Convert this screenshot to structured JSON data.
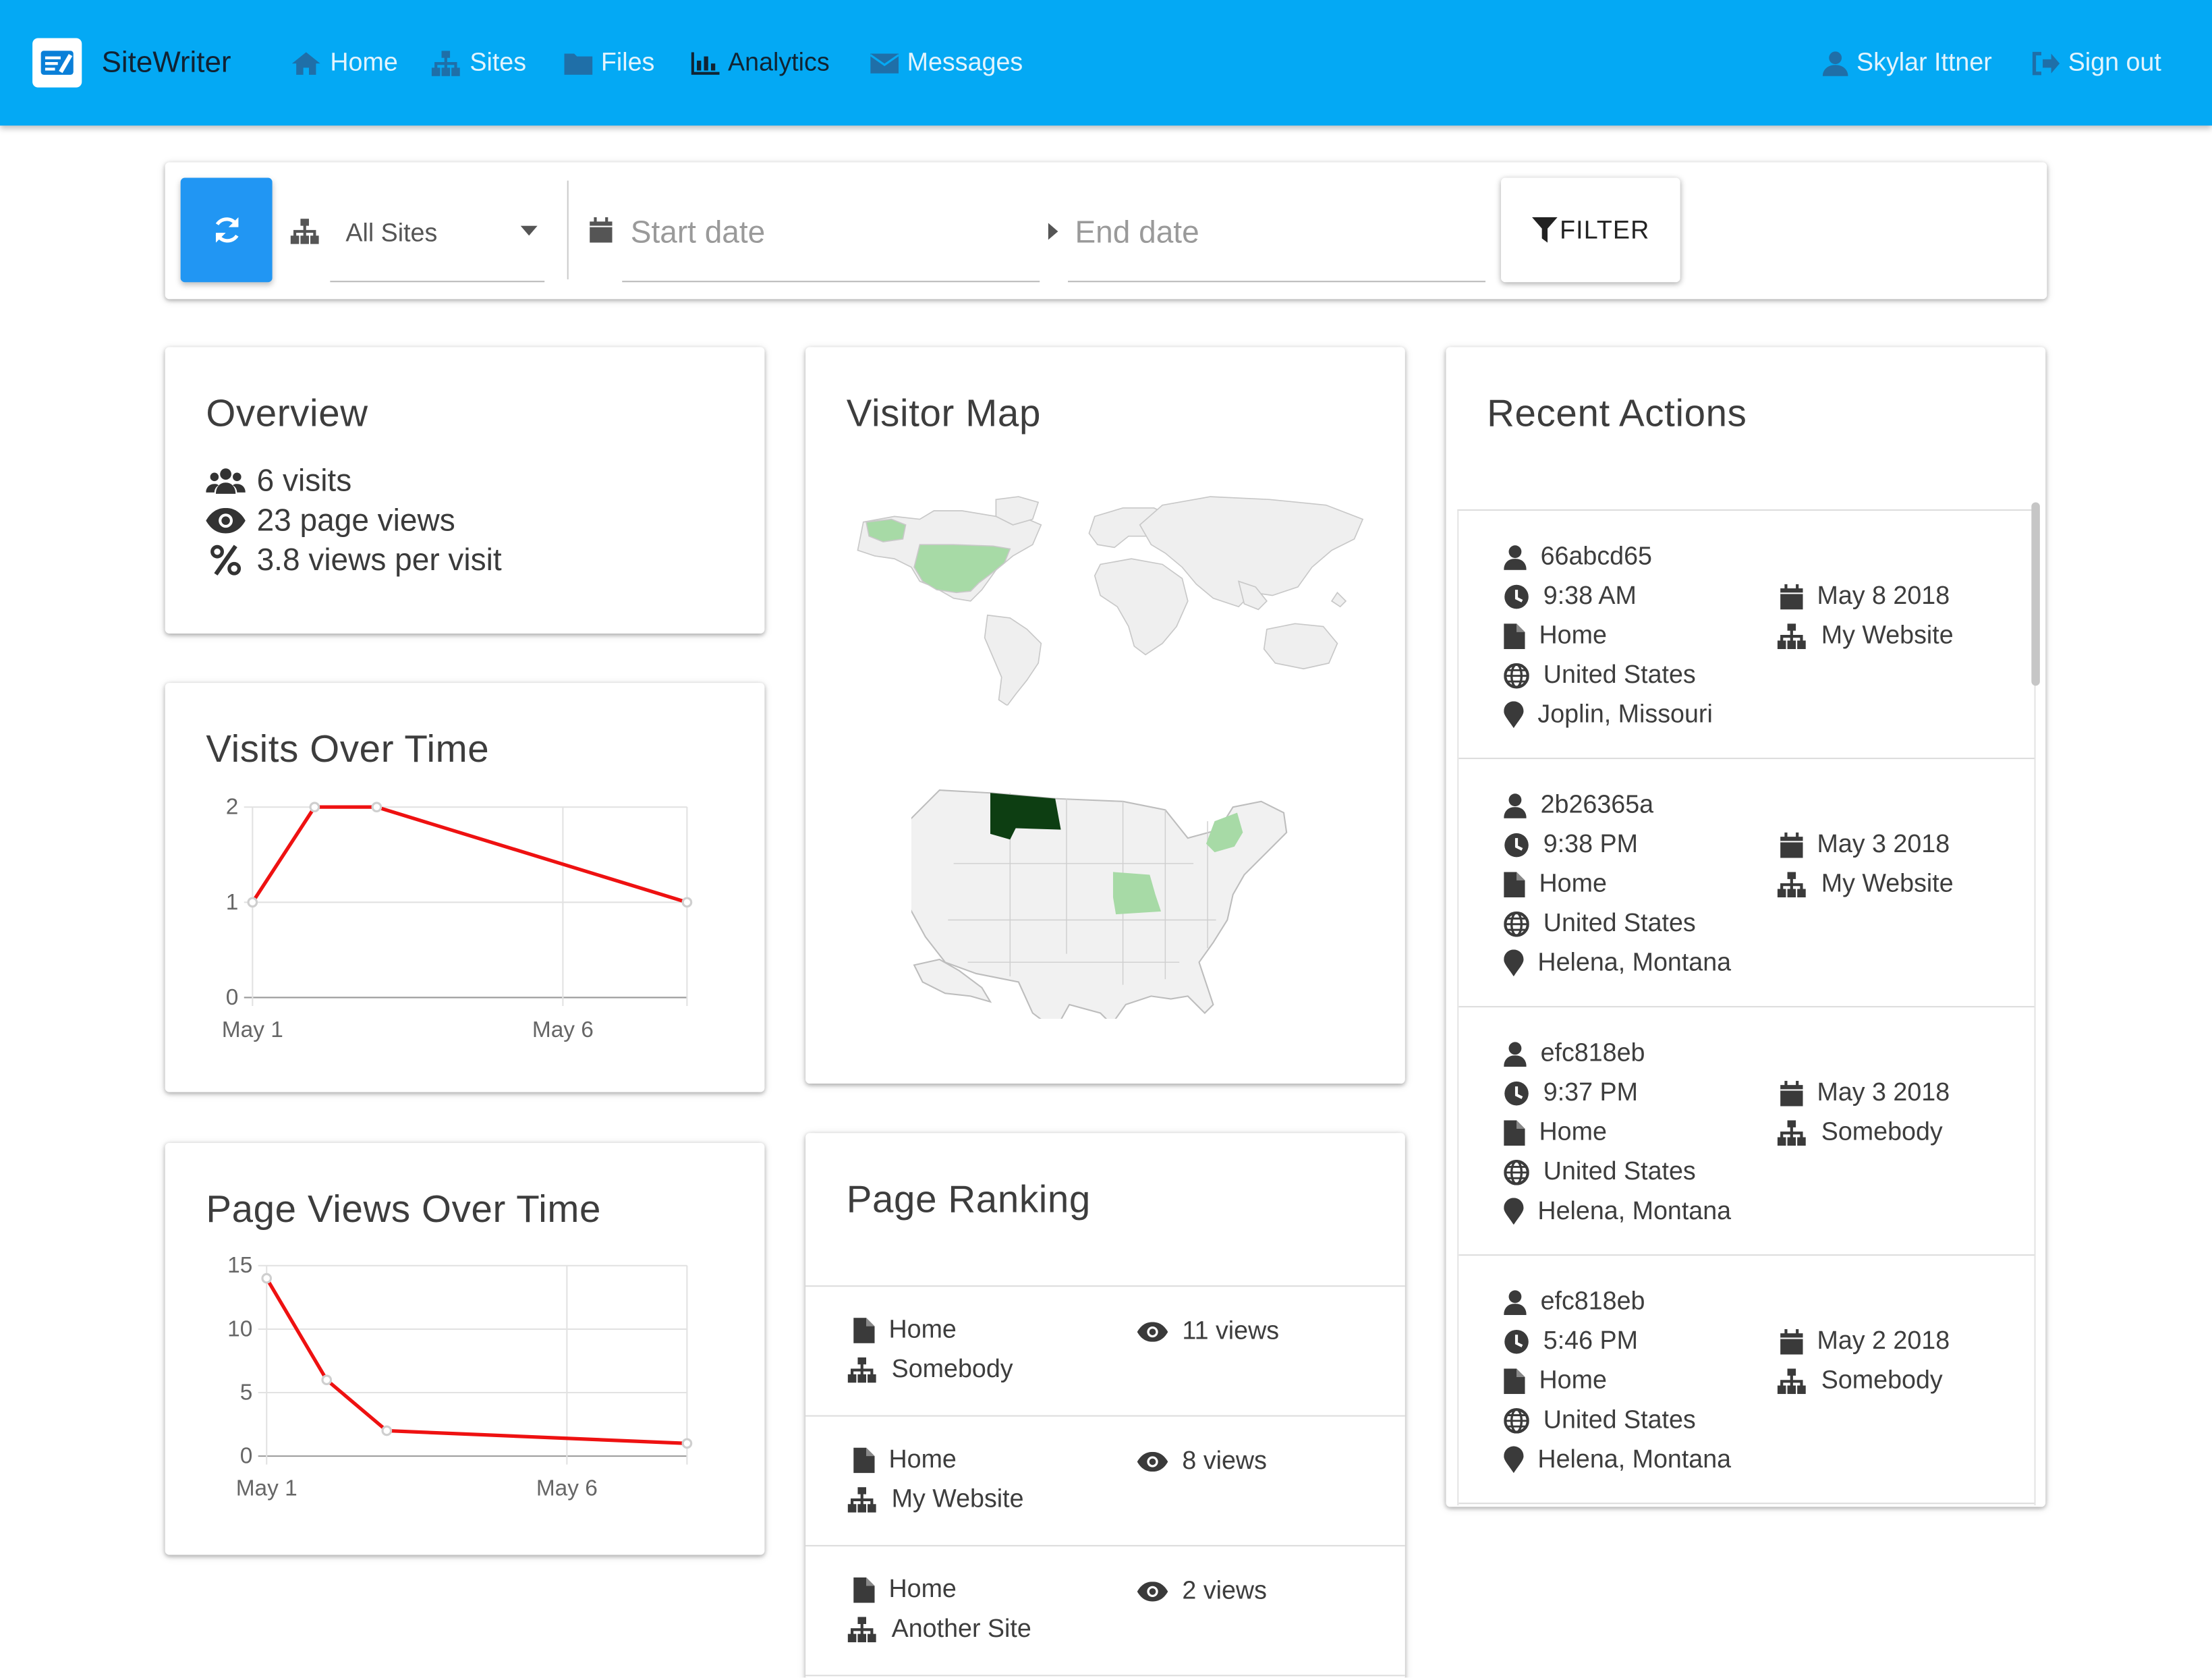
{
  "app": {
    "name": "SiteWriter"
  },
  "nav": {
    "items": [
      {
        "label": "Home",
        "icon": "home-icon"
      },
      {
        "label": "Sites",
        "icon": "sitemap-icon"
      },
      {
        "label": "Files",
        "icon": "folder-icon"
      },
      {
        "label": "Analytics",
        "icon": "bar-chart-icon",
        "active": true
      },
      {
        "label": "Messages",
        "icon": "envelope-icon"
      }
    ],
    "user": "Skylar Ittner",
    "signout": "Sign out"
  },
  "filter": {
    "site": "All Sites",
    "start_placeholder": "Start date",
    "end_placeholder": "End date",
    "button": "FILTER"
  },
  "overview": {
    "title": "Overview",
    "visits": "6 visits",
    "pageviews": "23 page views",
    "per_visit": "3.8 views per visit"
  },
  "visitor_map": {
    "title": "Visitor Map",
    "highlighted_countries": [
      "United States"
    ],
    "highlighted_states": [
      "Montana",
      "Missouri",
      "New York"
    ]
  },
  "recent": {
    "title": "Recent Actions",
    "items": [
      {
        "id": "66abcd65",
        "time": "9:38 AM",
        "date": "May 8 2018",
        "page": "Home",
        "site": "My Website",
        "country": "United States",
        "city": "Joplin, Missouri"
      },
      {
        "id": "2b26365a",
        "time": "9:38 PM",
        "date": "May 3 2018",
        "page": "Home",
        "site": "My Website",
        "country": "United States",
        "city": "Helena, Montana"
      },
      {
        "id": "efc818eb",
        "time": "9:37 PM",
        "date": "May 3 2018",
        "page": "Home",
        "site": "Somebody",
        "country": "United States",
        "city": "Helena, Montana"
      },
      {
        "id": "efc818eb",
        "time": "5:46 PM",
        "date": "May 2 2018",
        "page": "Home",
        "site": "Somebody",
        "country": "United States",
        "city": "Helena, Montana"
      }
    ]
  },
  "ranking": {
    "title": "Page Ranking",
    "items": [
      {
        "page": "Home",
        "site": "Somebody",
        "views": "11 views"
      },
      {
        "page": "Home",
        "site": "My Website",
        "views": "8 views"
      },
      {
        "page": "Home",
        "site": "Another Site",
        "views": "2 views"
      }
    ]
  },
  "chart_data": [
    {
      "type": "line",
      "title": "Visits Over Time",
      "x": [
        "2018-05-01",
        "2018-05-02",
        "2018-05-03",
        "2018-05-08"
      ],
      "values": [
        1,
        2,
        2,
        1
      ],
      "tick_labels_x": [
        "May 1",
        "May 6"
      ],
      "ylim": [
        0,
        2
      ],
      "yticks": [
        0,
        1,
        2
      ],
      "color": "#ee1111"
    },
    {
      "type": "line",
      "title": "Page Views Over Time",
      "x": [
        "2018-05-01",
        "2018-05-02",
        "2018-05-03",
        "2018-05-08"
      ],
      "values": [
        14,
        6,
        2,
        1
      ],
      "tick_labels_x": [
        "May 1",
        "May 6"
      ],
      "ylim": [
        0,
        15
      ],
      "yticks": [
        0,
        5,
        10,
        15
      ],
      "color": "#ee1111"
    }
  ]
}
